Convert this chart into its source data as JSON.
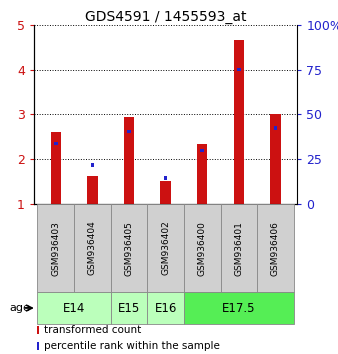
{
  "title": "GDS4591 / 1455593_at",
  "samples": [
    "GSM936403",
    "GSM936404",
    "GSM936405",
    "GSM936402",
    "GSM936400",
    "GSM936401",
    "GSM936406"
  ],
  "red_values": [
    2.6,
    1.63,
    2.95,
    1.52,
    2.35,
    4.65,
    3.0
  ],
  "blue_values": [
    2.35,
    1.88,
    2.62,
    1.58,
    2.2,
    4.0,
    2.7
  ],
  "age_groups": [
    {
      "label": "E14",
      "start": 0,
      "end": 2,
      "color": "#bbffbb"
    },
    {
      "label": "E15",
      "start": 2,
      "end": 3,
      "color": "#bbffbb"
    },
    {
      "label": "E16",
      "start": 3,
      "end": 4,
      "color": "#bbffbb"
    },
    {
      "label": "E17.5",
      "start": 4,
      "end": 7,
      "color": "#55ee55"
    }
  ],
  "ylim_left": [
    1,
    5
  ],
  "ylim_right": [
    0,
    100
  ],
  "yticks_left": [
    1,
    2,
    3,
    4,
    5
  ],
  "yticks_right": [
    0,
    25,
    50,
    75,
    100
  ],
  "yticklabels_right": [
    "0",
    "25",
    "50",
    "75",
    "100%"
  ],
  "red_color": "#cc1111",
  "blue_color": "#2222cc",
  "background_color": "#ffffff",
  "legend_red": "transformed count",
  "legend_blue": "percentile rank within the sample",
  "age_label": "age"
}
